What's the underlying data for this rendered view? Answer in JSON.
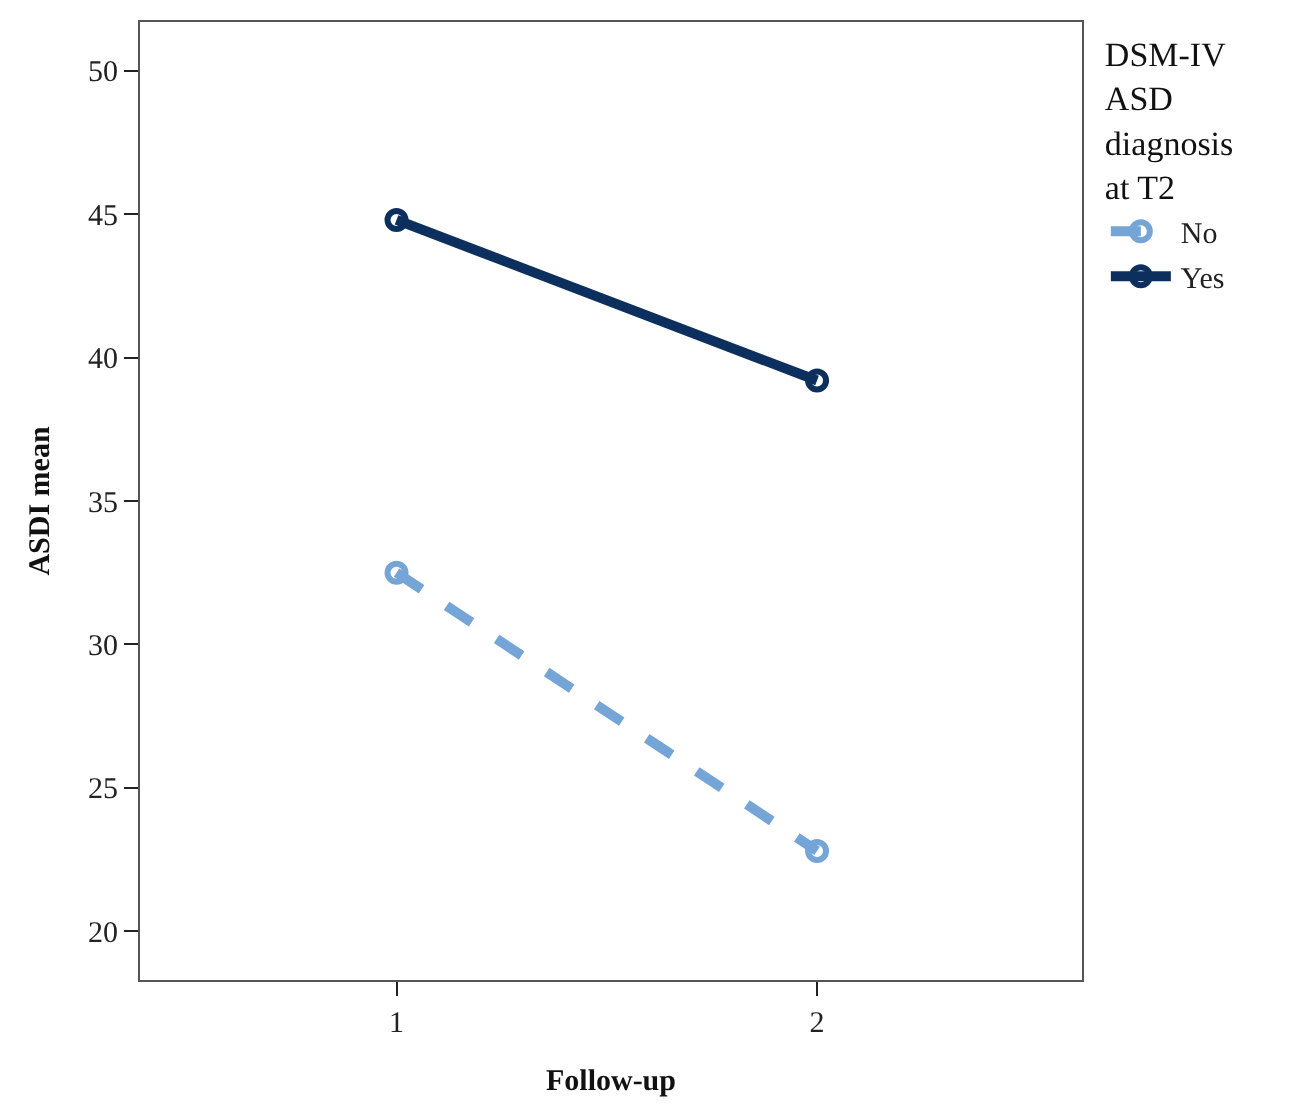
{
  "chart_data": {
    "type": "line",
    "xlabel": "Follow-up",
    "ylabel": "ASDI mean",
    "legend_title": "DSM-IV ASD diagnosis at T2",
    "x": [
      1,
      2
    ],
    "xlim": [
      0.39,
      2.63
    ],
    "xticks": [
      1,
      2
    ],
    "ylim": [
      18.3,
      51.7
    ],
    "yticks": [
      20,
      25,
      30,
      35,
      40,
      45,
      50
    ],
    "series": [
      {
        "name": "No",
        "color": "#75a5d6",
        "values": [
          32.5,
          22.8
        ],
        "line_style": "dashed"
      },
      {
        "name": "Yes",
        "color": "#0d2f5e",
        "values": [
          44.8,
          39.2
        ],
        "line_style": "solid"
      }
    ],
    "marker": "circle",
    "legend": "right"
  }
}
